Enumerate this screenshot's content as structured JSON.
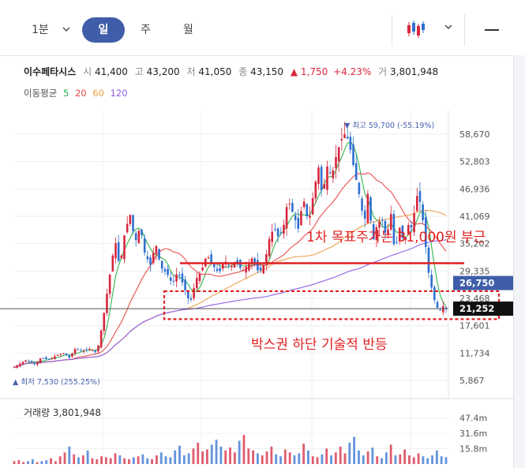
{
  "toolbar": {
    "timeframes": [
      "1분",
      "일",
      "주",
      "월"
    ],
    "active_timeframe": "일"
  },
  "stock": {
    "name": "이수페타시스",
    "open_label": "시",
    "open": "41,400",
    "high_label": "고",
    "high": "43,200",
    "low_label": "저",
    "low": "41,050",
    "close_label": "종",
    "close": "43,150",
    "change": "▲ 1,750",
    "change_pct": "+4.23%",
    "volume_label": "거",
    "volume": "3,801,948"
  },
  "moving_average": {
    "label": "이동평균",
    "periods": [
      "5",
      "20",
      "60",
      "120"
    ],
    "colors": [
      "#2db24a",
      "#e84a4a",
      "#f0a04b",
      "#8c5ce6"
    ]
  },
  "colors": {
    "up": "#d7263d",
    "down": "#2f6fd0",
    "accent": "#3f5da8",
    "annotation": "#e02020"
  },
  "chart_data": {
    "type": "candlestick",
    "y_ticks": [
      "58,670",
      "52,803",
      "46,936",
      "41,069",
      "35,202",
      "29,335",
      "23,468",
      "17,601",
      "11,734",
      "5,867"
    ],
    "high_marker": "▼ 최고 59,700 (-55.19%)",
    "low_marker": "▲ 최저 7,530 (255.25%)",
    "price_tags": [
      {
        "label": "26,750",
        "value": 26750,
        "color": "#3f5da8"
      },
      {
        "label": "21,252",
        "value": 21252,
        "color": "#111111"
      }
    ],
    "horizontal_line": 21252,
    "target_line": 31000,
    "box_range": [
      19000,
      25000
    ],
    "annotations": [
      "1차 목표주가는 31,000원 부근",
      "박스권 하단 기술적 반등"
    ],
    "volume_title": "거래량 3,801,948",
    "volume_ticks": [
      "47.4m",
      "31.6m",
      "15.8m"
    ],
    "price_path": [
      [
        0,
        8700
      ],
      [
        15,
        10200
      ],
      [
        28,
        9400
      ],
      [
        35,
        10700
      ],
      [
        45,
        10300
      ],
      [
        55,
        11200
      ],
      [
        65,
        11700
      ],
      [
        72,
        10700
      ],
      [
        80,
        12700
      ],
      [
        90,
        12100
      ],
      [
        100,
        12700
      ],
      [
        108,
        11700
      ],
      [
        115,
        17600
      ],
      [
        120,
        23000
      ],
      [
        126,
        29500
      ],
      [
        132,
        36000
      ],
      [
        138,
        30000
      ],
      [
        145,
        38000
      ],
      [
        152,
        41500
      ],
      [
        158,
        35300
      ],
      [
        165,
        39000
      ],
      [
        170,
        33500
      ],
      [
        178,
        30500
      ],
      [
        185,
        35300
      ],
      [
        192,
        30000
      ],
      [
        200,
        28800
      ],
      [
        207,
        26500
      ],
      [
        214,
        29300
      ],
      [
        222,
        26000
      ],
      [
        230,
        22300
      ],
      [
        238,
        27600
      ],
      [
        245,
        29300
      ],
      [
        252,
        32800
      ],
      [
        260,
        30500
      ],
      [
        268,
        28800
      ],
      [
        275,
        31700
      ],
      [
        283,
        30000
      ],
      [
        290,
        31700
      ],
      [
        298,
        29300
      ],
      [
        305,
        30500
      ],
      [
        312,
        32300
      ],
      [
        320,
        28800
      ],
      [
        328,
        31100
      ],
      [
        333,
        35900
      ],
      [
        340,
        38800
      ],
      [
        346,
        36400
      ],
      [
        353,
        39400
      ],
      [
        358,
        44700
      ],
      [
        365,
        41600
      ],
      [
        372,
        38200
      ],
      [
        378,
        45200
      ],
      [
        385,
        39400
      ],
      [
        392,
        46400
      ],
      [
        398,
        51700
      ],
      [
        403,
        45300
      ],
      [
        410,
        52200
      ],
      [
        415,
        49300
      ],
      [
        422,
        54600
      ],
      [
        428,
        57500
      ],
      [
        434,
        59100
      ],
      [
        440,
        55200
      ],
      [
        446,
        50000
      ],
      [
        452,
        45200
      ],
      [
        458,
        39400
      ],
      [
        463,
        46400
      ],
      [
        469,
        35300
      ],
      [
        475,
        39400
      ],
      [
        481,
        40500
      ],
      [
        487,
        36400
      ],
      [
        493,
        41600
      ],
      [
        498,
        32900
      ],
      [
        504,
        38800
      ],
      [
        510,
        35300
      ],
      [
        516,
        39400
      ],
      [
        521,
        38300
      ],
      [
        526,
        45800
      ],
      [
        531,
        44100
      ],
      [
        536,
        38800
      ],
      [
        541,
        30000
      ],
      [
        546,
        25800
      ],
      [
        551,
        22300
      ],
      [
        556,
        20700
      ],
      [
        561,
        21800
      ],
      [
        565,
        21300
      ]
    ],
    "volume": [
      3,
      4,
      2,
      3,
      5,
      2,
      3,
      4,
      6,
      3,
      8,
      12,
      18,
      10,
      7,
      9,
      14,
      6,
      5,
      8,
      7,
      6,
      11,
      9,
      6,
      5,
      7,
      8,
      10,
      6,
      5,
      9,
      12,
      8,
      7,
      14,
      19,
      9,
      11,
      16,
      22,
      13,
      15,
      20,
      25,
      18,
      14,
      17,
      12,
      24,
      30,
      16,
      14,
      11,
      9,
      13,
      18,
      10,
      8,
      15,
      12,
      9,
      11,
      21,
      14,
      8,
      7,
      10,
      16,
      9,
      12,
      18,
      11,
      22,
      28,
      14,
      9,
      13,
      17,
      8,
      6,
      12,
      20,
      9,
      10,
      15,
      9,
      7,
      11,
      8,
      6,
      9,
      14,
      8,
      7
    ]
  }
}
